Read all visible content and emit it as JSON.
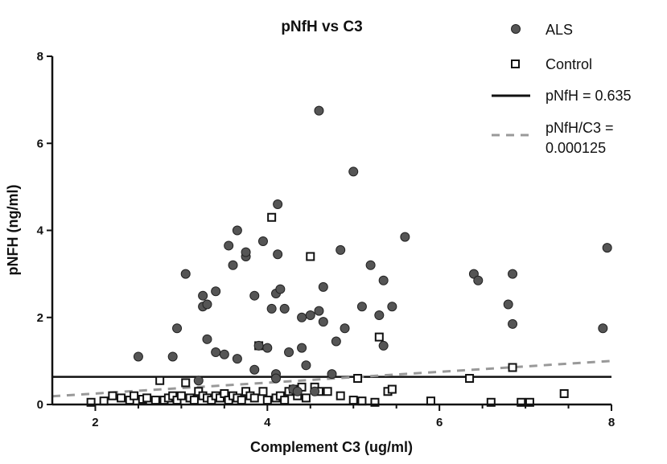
{
  "chart_data": {
    "type": "scatter",
    "title": "pNfH vs C3",
    "xlabel": "Complement C3 (ug/ml)",
    "ylabel": "pNFH (ng/ml)",
    "xlim": [
      1.5,
      8
    ],
    "ylim": [
      0,
      8
    ],
    "x_ticks": [
      "2",
      "4",
      "6",
      "8"
    ],
    "y_ticks": [
      "0",
      "2",
      "4",
      "6",
      "8"
    ],
    "grid": false,
    "legend_position": "top-right",
    "legend": [
      "ALS",
      "Control",
      "pNfH = 0.635",
      "pNfH/C3 =",
      "0.000125"
    ],
    "series": [
      {
        "name": "ALS",
        "marker": "filled-circle",
        "color": "#555555",
        "points": [
          [
            2.5,
            1.1
          ],
          [
            2.9,
            1.1
          ],
          [
            2.95,
            1.75
          ],
          [
            3.05,
            3.0
          ],
          [
            3.2,
            0.55
          ],
          [
            3.25,
            2.25
          ],
          [
            3.25,
            2.5
          ],
          [
            3.3,
            2.3
          ],
          [
            3.3,
            1.5
          ],
          [
            3.4,
            2.6
          ],
          [
            3.4,
            1.2
          ],
          [
            3.5,
            1.15
          ],
          [
            3.55,
            3.65
          ],
          [
            3.6,
            3.2
          ],
          [
            3.65,
            4.0
          ],
          [
            3.65,
            1.05
          ],
          [
            3.75,
            3.4
          ],
          [
            3.75,
            3.5
          ],
          [
            3.85,
            2.5
          ],
          [
            3.85,
            0.8
          ],
          [
            3.9,
            1.35
          ],
          [
            3.95,
            3.75
          ],
          [
            4.0,
            1.3
          ],
          [
            4.05,
            2.2
          ],
          [
            4.1,
            2.55
          ],
          [
            4.1,
            0.7
          ],
          [
            4.1,
            0.6
          ],
          [
            4.12,
            4.6
          ],
          [
            4.12,
            3.45
          ],
          [
            4.15,
            2.65
          ],
          [
            4.2,
            2.2
          ],
          [
            4.25,
            1.2
          ],
          [
            4.3,
            0.35
          ],
          [
            4.35,
            0.3
          ],
          [
            4.4,
            1.3
          ],
          [
            4.4,
            2.0
          ],
          [
            4.45,
            0.9
          ],
          [
            4.5,
            2.05
          ],
          [
            4.55,
            0.3
          ],
          [
            4.6,
            6.75
          ],
          [
            4.6,
            2.15
          ],
          [
            4.65,
            1.9
          ],
          [
            4.65,
            2.7
          ],
          [
            4.75,
            0.7
          ],
          [
            4.8,
            1.45
          ],
          [
            4.85,
            3.55
          ],
          [
            4.9,
            1.75
          ],
          [
            5.0,
            5.35
          ],
          [
            5.1,
            2.25
          ],
          [
            5.2,
            3.2
          ],
          [
            5.3,
            2.05
          ],
          [
            5.35,
            2.85
          ],
          [
            5.35,
            1.35
          ],
          [
            5.45,
            2.25
          ],
          [
            5.6,
            3.85
          ],
          [
            6.4,
            3.0
          ],
          [
            6.45,
            2.85
          ],
          [
            6.8,
            2.3
          ],
          [
            6.85,
            3.0
          ],
          [
            6.85,
            1.85
          ],
          [
            7.9,
            1.75
          ],
          [
            7.95,
            3.6
          ]
        ]
      },
      {
        "name": "Control",
        "marker": "open-square",
        "color": "#111111",
        "points": [
          [
            1.95,
            0.05
          ],
          [
            2.1,
            0.08
          ],
          [
            2.2,
            0.2
          ],
          [
            2.3,
            0.15
          ],
          [
            2.4,
            0.1
          ],
          [
            2.45,
            0.2
          ],
          [
            2.55,
            0.12
          ],
          [
            2.6,
            0.15
          ],
          [
            2.7,
            0.1
          ],
          [
            2.75,
            0.55
          ],
          [
            2.8,
            0.1
          ],
          [
            2.85,
            0.15
          ],
          [
            2.9,
            0.2
          ],
          [
            2.95,
            0.1
          ],
          [
            3.0,
            0.2
          ],
          [
            3.05,
            0.5
          ],
          [
            3.1,
            0.15
          ],
          [
            3.15,
            0.1
          ],
          [
            3.2,
            0.3
          ],
          [
            3.25,
            0.2
          ],
          [
            3.3,
            0.15
          ],
          [
            3.35,
            0.1
          ],
          [
            3.4,
            0.2
          ],
          [
            3.45,
            0.15
          ],
          [
            3.5,
            0.25
          ],
          [
            3.55,
            0.1
          ],
          [
            3.6,
            0.2
          ],
          [
            3.65,
            0.15
          ],
          [
            3.7,
            0.1
          ],
          [
            3.75,
            0.3
          ],
          [
            3.8,
            0.2
          ],
          [
            3.85,
            0.15
          ],
          [
            3.9,
            1.35
          ],
          [
            3.95,
            0.3
          ],
          [
            4.0,
            0.1
          ],
          [
            4.05,
            4.3
          ],
          [
            4.1,
            0.15
          ],
          [
            4.15,
            0.2
          ],
          [
            4.2,
            0.1
          ],
          [
            4.25,
            0.3
          ],
          [
            4.3,
            0.35
          ],
          [
            4.35,
            0.2
          ],
          [
            4.4,
            0.4
          ],
          [
            4.45,
            0.15
          ],
          [
            4.5,
            3.4
          ],
          [
            4.55,
            0.4
          ],
          [
            4.6,
            0.3
          ],
          [
            4.7,
            0.3
          ],
          [
            4.85,
            0.2
          ],
          [
            5.0,
            0.1
          ],
          [
            5.05,
            0.6
          ],
          [
            5.1,
            0.08
          ],
          [
            5.25,
            0.05
          ],
          [
            5.3,
            1.55
          ],
          [
            5.4,
            0.3
          ],
          [
            5.45,
            0.35
          ],
          [
            5.9,
            0.08
          ],
          [
            6.35,
            0.6
          ],
          [
            6.6,
            0.05
          ],
          [
            6.85,
            0.85
          ],
          [
            6.95,
            0.05
          ],
          [
            7.05,
            0.05
          ],
          [
            7.45,
            0.25
          ]
        ]
      },
      {
        "name": "pNfH = 0.635",
        "type": "line",
        "style": "solid",
        "color": "#111111",
        "x": [
          1.5,
          8
        ],
        "y": [
          0.635,
          0.635
        ]
      },
      {
        "name": "pNfH/C3 = 0.000125",
        "type": "line",
        "style": "dashed",
        "color": "#999999",
        "x": [
          1.5,
          8
        ],
        "y": [
          0.19,
          1.0
        ]
      }
    ]
  }
}
